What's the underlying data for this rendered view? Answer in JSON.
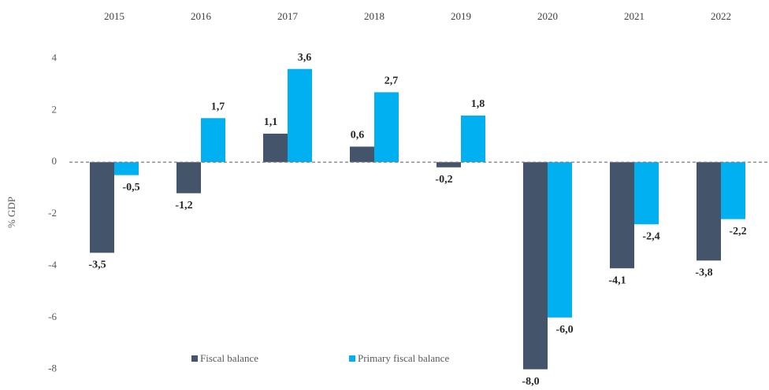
{
  "chart_data": {
    "type": "bar",
    "y_label": "% GDP",
    "categories": [
      "2015",
      "2016",
      "2017",
      "2018",
      "2019",
      "2020",
      "2021",
      "2022"
    ],
    "series": [
      {
        "name": "Fiscal balance",
        "color": "#44546a",
        "values": [
          -3.5,
          -1.2,
          1.1,
          0.6,
          -0.2,
          -8.0,
          -4.1,
          -3.8
        ],
        "value_labels": [
          "-3,5",
          "-1,2",
          "1,1",
          "0,6",
          "-0,2",
          "-8,0",
          "-4,1",
          "-3,8"
        ]
      },
      {
        "name": "Primary fiscal balance",
        "color": "#00b0f0",
        "values": [
          -0.5,
          1.7,
          3.6,
          2.7,
          1.8,
          -6.0,
          -2.4,
          -2.2
        ],
        "value_labels": [
          "-0,5",
          "1,7",
          "3,6",
          "2,7",
          "1,8",
          "-6,0",
          "-2,4",
          "-2,2"
        ]
      }
    ],
    "ylim": [
      -8.8,
      5.2
    ],
    "yticks": [
      4,
      2,
      0,
      -2,
      -4,
      -6,
      -8
    ]
  }
}
